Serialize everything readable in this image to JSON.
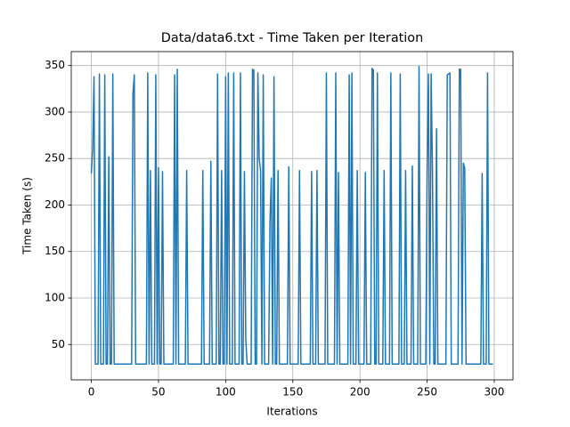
{
  "chart_data": {
    "type": "line",
    "title": "Data/data6.txt - Time Taken per Iteration",
    "xlabel": "Iterations",
    "ylabel": "Time Taken (s)",
    "color": "#1f77b4",
    "grid": true,
    "xlim": [
      -14.95,
      313.95
    ],
    "ylim": [
      12,
      365
    ],
    "xticks": [
      0,
      50,
      100,
      150,
      200,
      250,
      300
    ],
    "yticks": [
      50,
      100,
      150,
      200,
      250,
      300,
      350
    ],
    "x": [
      0,
      1,
      2,
      3,
      4,
      5,
      6,
      7,
      8,
      9,
      10,
      11,
      12,
      13,
      14,
      15,
      16,
      17,
      18,
      19,
      20,
      21,
      22,
      23,
      24,
      25,
      26,
      27,
      28,
      29,
      30,
      31,
      32,
      33,
      34,
      35,
      36,
      37,
      38,
      39,
      40,
      41,
      42,
      43,
      44,
      45,
      46,
      47,
      48,
      49,
      50,
      51,
      52,
      53,
      54,
      55,
      56,
      57,
      58,
      59,
      60,
      61,
      62,
      63,
      64,
      65,
      66,
      67,
      68,
      69,
      70,
      71,
      72,
      73,
      74,
      75,
      76,
      77,
      78,
      79,
      80,
      81,
      82,
      83,
      84,
      85,
      86,
      87,
      88,
      89,
      90,
      91,
      92,
      93,
      94,
      95,
      96,
      97,
      98,
      99,
      100,
      101,
      102,
      103,
      104,
      105,
      106,
      107,
      108,
      109,
      110,
      111,
      112,
      113,
      114,
      115,
      116,
      117,
      118,
      119,
      120,
      121,
      122,
      123,
      124,
      125,
      126,
      127,
      128,
      129,
      130,
      131,
      132,
      133,
      134,
      135,
      136,
      137,
      138,
      139,
      140,
      141,
      142,
      143,
      144,
      145,
      146,
      147,
      148,
      149,
      150,
      151,
      152,
      153,
      154,
      155,
      156,
      157,
      158,
      159,
      160,
      161,
      162,
      163,
      164,
      165,
      166,
      167,
      168,
      169,
      170,
      171,
      172,
      173,
      174,
      175,
      176,
      177,
      178,
      179,
      180,
      181,
      182,
      183,
      184,
      185,
      186,
      187,
      188,
      189,
      190,
      191,
      192,
      193,
      194,
      195,
      196,
      197,
      198,
      199,
      200,
      201,
      202,
      203,
      204,
      205,
      206,
      207,
      208,
      209,
      210,
      211,
      212,
      213,
      214,
      215,
      216,
      217,
      218,
      219,
      220,
      221,
      222,
      223,
      224,
      225,
      226,
      227,
      228,
      229,
      230,
      231,
      232,
      233,
      234,
      235,
      236,
      237,
      238,
      239,
      240,
      241,
      242,
      243,
      244,
      245,
      246,
      247,
      248,
      249,
      250,
      251,
      252,
      253,
      254,
      255,
      256,
      257,
      258,
      259,
      260,
      261,
      262,
      263,
      264,
      265,
      266,
      267,
      268,
      269,
      270,
      271,
      272,
      273,
      274,
      275,
      276,
      277,
      278,
      279,
      280,
      281,
      282,
      283,
      284,
      285,
      286,
      287,
      288,
      289,
      290,
      291,
      292,
      293,
      294,
      295,
      296,
      297,
      298,
      299
    ],
    "values": [
      234,
      260,
      338,
      29,
      29,
      29,
      341,
      29,
      29,
      29,
      340,
      29,
      29,
      252,
      29,
      29,
      341,
      29,
      29,
      29,
      29,
      29,
      29,
      29,
      29,
      29,
      29,
      29,
      29,
      29,
      29,
      320,
      340,
      29,
      29,
      29,
      29,
      29,
      29,
      29,
      29,
      29,
      342,
      29,
      237,
      29,
      29,
      29,
      340,
      29,
      240,
      29,
      29,
      236,
      29,
      29,
      29,
      29,
      29,
      29,
      29,
      29,
      340,
      29,
      346,
      29,
      29,
      29,
      29,
      29,
      29,
      237,
      29,
      29,
      29,
      29,
      29,
      29,
      29,
      29,
      29,
      29,
      29,
      237,
      29,
      29,
      29,
      29,
      29,
      247,
      29,
      29,
      29,
      29,
      341,
      29,
      29,
      237,
      29,
      29,
      338,
      29,
      342,
      29,
      29,
      29,
      342,
      29,
      29,
      29,
      29,
      342,
      29,
      29,
      236,
      56,
      29,
      29,
      29,
      29,
      346,
      345,
      29,
      29,
      342,
      250,
      237,
      29,
      340,
      29,
      29,
      29,
      29,
      182,
      229,
      29,
      338,
      29,
      29,
      237,
      29,
      29,
      29,
      29,
      29,
      29,
      29,
      241,
      29,
      29,
      29,
      29,
      29,
      29,
      29,
      237,
      29,
      29,
      29,
      29,
      29,
      29,
      29,
      29,
      236,
      29,
      29,
      29,
      237,
      29,
      29,
      29,
      29,
      29,
      29,
      342,
      29,
      29,
      29,
      29,
      29,
      29,
      342,
      29,
      235,
      29,
      29,
      29,
      29,
      29,
      29,
      29,
      340,
      29,
      342,
      29,
      29,
      29,
      237,
      29,
      29,
      29,
      29,
      29,
      235,
      29,
      29,
      29,
      29,
      347,
      345,
      29,
      29,
      342,
      29,
      29,
      29,
      29,
      237,
      29,
      29,
      29,
      29,
      342,
      29,
      29,
      29,
      29,
      29,
      29,
      341,
      29,
      29,
      29,
      237,
      29,
      29,
      29,
      29,
      242,
      29,
      29,
      29,
      29,
      349,
      29,
      29,
      29,
      29,
      29,
      240,
      341,
      29,
      341,
      236,
      29,
      29,
      282,
      29,
      29,
      29,
      29,
      29,
      29,
      29,
      340,
      341,
      342,
      29,
      29,
      29,
      29,
      29,
      29,
      346,
      346,
      29,
      245,
      240,
      29,
      29,
      29,
      29,
      29,
      29,
      29,
      29,
      29,
      29,
      29,
      29,
      234,
      29,
      29,
      29,
      342,
      29,
      29,
      29,
      29
    ]
  }
}
